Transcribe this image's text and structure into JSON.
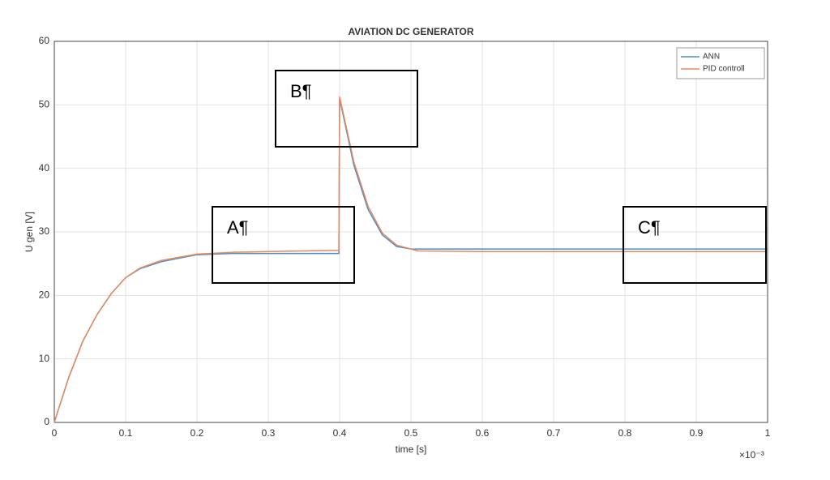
{
  "chart_data": {
    "type": "line",
    "title": "AVIATION DC GENERATOR",
    "x_label": "time [s]",
    "y_label": "U gen [V]",
    "x_exponent_label": "×10⁻³",
    "x": [
      0,
      0.02,
      0.04,
      0.06,
      0.08,
      0.1,
      0.12,
      0.15,
      0.2,
      0.25,
      0.3,
      0.35,
      0.399,
      0.4,
      0.42,
      0.44,
      0.46,
      0.48,
      0.5,
      0.51,
      0.6,
      0.7,
      0.8,
      0.9,
      1.0
    ],
    "series": [
      {
        "name": "ANN",
        "color": "#4d8fc6",
        "values": [
          0,
          7,
          12.8,
          17,
          20.3,
          22.8,
          24.2,
          25.3,
          26.4,
          26.6,
          26.6,
          26.6,
          26.6,
          51,
          40.5,
          33.5,
          29.5,
          27.7,
          27.3,
          27.3,
          27.3,
          27.3,
          27.3,
          27.3,
          27.3
        ]
      },
      {
        "name": "PID controll",
        "color": "#e8895c",
        "values": [
          0,
          7,
          12.8,
          17,
          20.3,
          22.8,
          24.3,
          25.5,
          26.5,
          26.8,
          26.9,
          27.0,
          27.1,
          51.3,
          41,
          34,
          29.8,
          27.9,
          27.3,
          27.0,
          26.9,
          26.9,
          26.9,
          26.9,
          26.9
        ]
      }
    ],
    "xlim": [
      0,
      1
    ],
    "xticks": [
      0,
      0.1,
      0.2,
      0.3,
      0.4,
      0.5,
      0.6,
      0.7,
      0.8,
      0.9,
      1
    ],
    "ylim": [
      0,
      60
    ],
    "yticks": [
      0,
      10,
      20,
      30,
      40,
      50,
      60
    ],
    "grid": true,
    "legend": "top-right",
    "annotations": [
      "A¶",
      "B¶",
      "C¶"
    ]
  }
}
